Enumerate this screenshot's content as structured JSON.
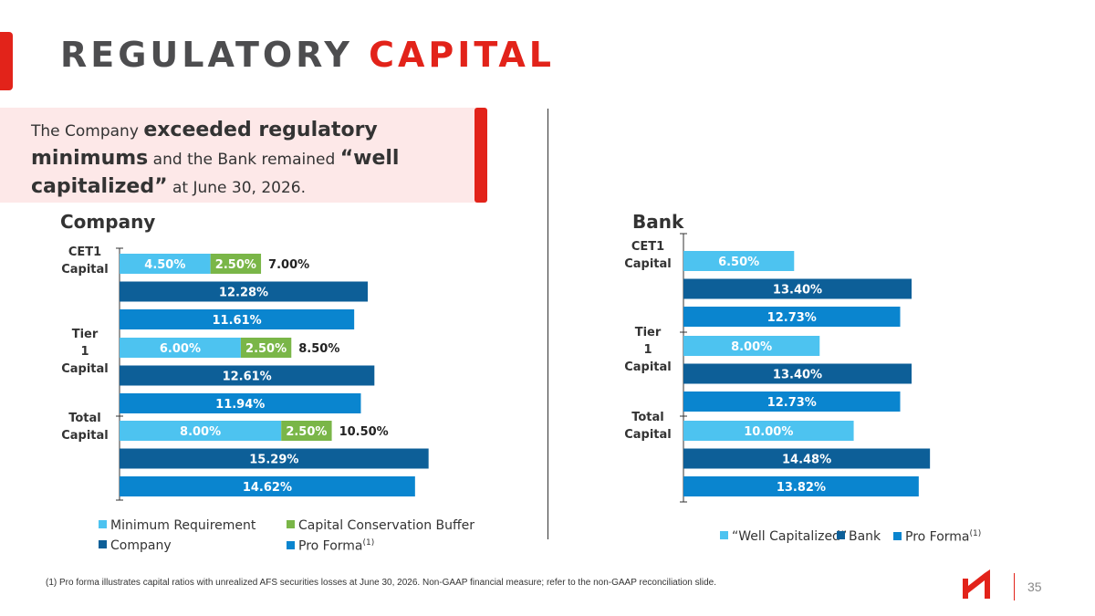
{
  "header": {
    "title_part1": "REGULATORY",
    "title_part2": "CAPITAL"
  },
  "callout": {
    "p1": "The Company ",
    "b1": "exceeded regulatory minimums",
    "p2": " and the Bank remained ",
    "b2": "“well capitalized”",
    "p3": " at June 30, 2026."
  },
  "colors": {
    "accent": "#e2231a",
    "minimum": "#4dc3f0",
    "buffer": "#7ab648",
    "company": "#0d5f98",
    "pro_forma": "#0a85cf",
    "well_capitalized": "#4dc3f0",
    "bank": "#0d5f98"
  },
  "chart_data": [
    {
      "type": "bar",
      "title": "Company",
      "categories": [
        "CET1 Capital",
        "Tier 1 Capital",
        "Total Capital"
      ],
      "xlim": [
        0,
        16
      ],
      "stacked_requirement": {
        "minimum": [
          4.5,
          6.0,
          8.0
        ],
        "buffer": [
          2.5,
          2.5,
          2.5
        ],
        "minimum_labels": [
          "4.50%",
          "6.00%",
          "8.00%"
        ],
        "buffer_labels": [
          "2.50%",
          "2.50%",
          "2.50%"
        ],
        "total_labels": [
          "7.00%",
          "8.50%",
          "10.50%"
        ]
      },
      "series": [
        {
          "name": "Company",
          "values": [
            12.28,
            12.61,
            15.29
          ],
          "labels": [
            "12.28%",
            "12.61%",
            "15.29%"
          ]
        },
        {
          "name": "Pro Forma",
          "values": [
            11.61,
            11.94,
            14.62
          ],
          "labels": [
            "11.61%",
            "11.94%",
            "14.62%"
          ]
        }
      ],
      "legend": [
        {
          "key": "minimum",
          "label": "Minimum Requirement"
        },
        {
          "key": "buffer",
          "label": "Capital Conservation Buffer"
        },
        {
          "key": "company",
          "label": "Company"
        },
        {
          "key": "pro_forma",
          "label": "Pro Forma",
          "sup": "(1)"
        }
      ]
    },
    {
      "type": "bar",
      "title": "Bank",
      "categories": [
        "CET1 Capital",
        "Tier 1 Capital",
        "Total Capital"
      ],
      "xlim": [
        0,
        16
      ],
      "series": [
        {
          "name": "“Well Capitalized”",
          "values": [
            6.5,
            8.0,
            10.0
          ],
          "labels": [
            "6.50%",
            "8.00%",
            "10.00%"
          ]
        },
        {
          "name": "Bank",
          "values": [
            13.4,
            13.4,
            14.48
          ],
          "labels": [
            "13.40%",
            "13.40%",
            "14.48%"
          ]
        },
        {
          "name": "Pro Forma",
          "values": [
            12.73,
            12.73,
            13.82
          ],
          "labels": [
            "12.73%",
            "12.73%",
            "13.82%"
          ]
        }
      ],
      "legend": [
        {
          "key": "well_capitalized",
          "label": "“Well Capitalized”"
        },
        {
          "key": "bank",
          "label": "Bank"
        },
        {
          "key": "pro_forma",
          "label": "Pro Forma",
          "sup": "(1)"
        }
      ]
    }
  ],
  "footnote": "(1)    Pro forma illustrates capital ratios with unrealized AFS securities losses at June 30, 2026. Non-GAAP financial measure; refer to the non-GAAP reconciliation slide.",
  "page_number": "35"
}
